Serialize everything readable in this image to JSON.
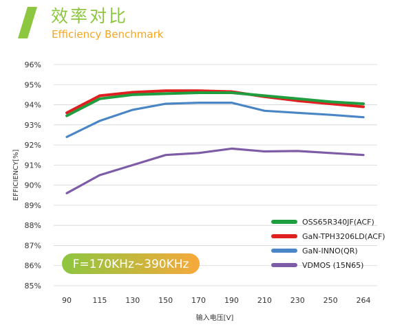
{
  "header": {
    "title_cn": "效率对比",
    "title_en": "Efficiency Benchmark",
    "accent_color": "#8dc63f",
    "subtitle_color": "#f5a623"
  },
  "chart_data": {
    "type": "line",
    "categories": [
      "90",
      "115",
      "130",
      "150",
      "170",
      "190",
      "210",
      "230",
      "250",
      "264"
    ],
    "y_ticks": [
      "85%",
      "86%",
      "87%",
      "88%",
      "89%",
      "90%",
      "91%",
      "92%",
      "93%",
      "94%",
      "95%",
      "96%"
    ],
    "ylim": [
      85,
      96
    ],
    "ylabel": "EFFICIENCY[%]",
    "xlabel": "输入电压[V]",
    "grid": true,
    "legend_position": "bottom-right",
    "annotation": "F=170KHz~390KHz",
    "series": [
      {
        "name": "OSS65R340JF(ACF)",
        "color": "#1e9e3e",
        "values": [
          93.45,
          94.3,
          94.5,
          94.55,
          94.6,
          94.6,
          94.45,
          94.3,
          94.15,
          94.05
        ]
      },
      {
        "name": "GaN-TPH3206LD(ACF)",
        "color": "#e02020",
        "values": [
          93.6,
          94.45,
          94.62,
          94.7,
          94.7,
          94.65,
          94.4,
          94.2,
          94.05,
          93.9
        ]
      },
      {
        "name": "GaN-INNO(QR)",
        "color": "#4a86c5",
        "values": [
          92.4,
          93.2,
          93.75,
          94.05,
          94.1,
          94.1,
          93.7,
          93.6,
          93.5,
          93.38
        ]
      },
      {
        "name": "VDMOS (15N65)",
        "color": "#7d5ba6",
        "values": [
          89.6,
          90.5,
          91.0,
          91.5,
          91.6,
          91.82,
          91.68,
          91.7,
          91.6,
          91.5
        ]
      }
    ]
  }
}
